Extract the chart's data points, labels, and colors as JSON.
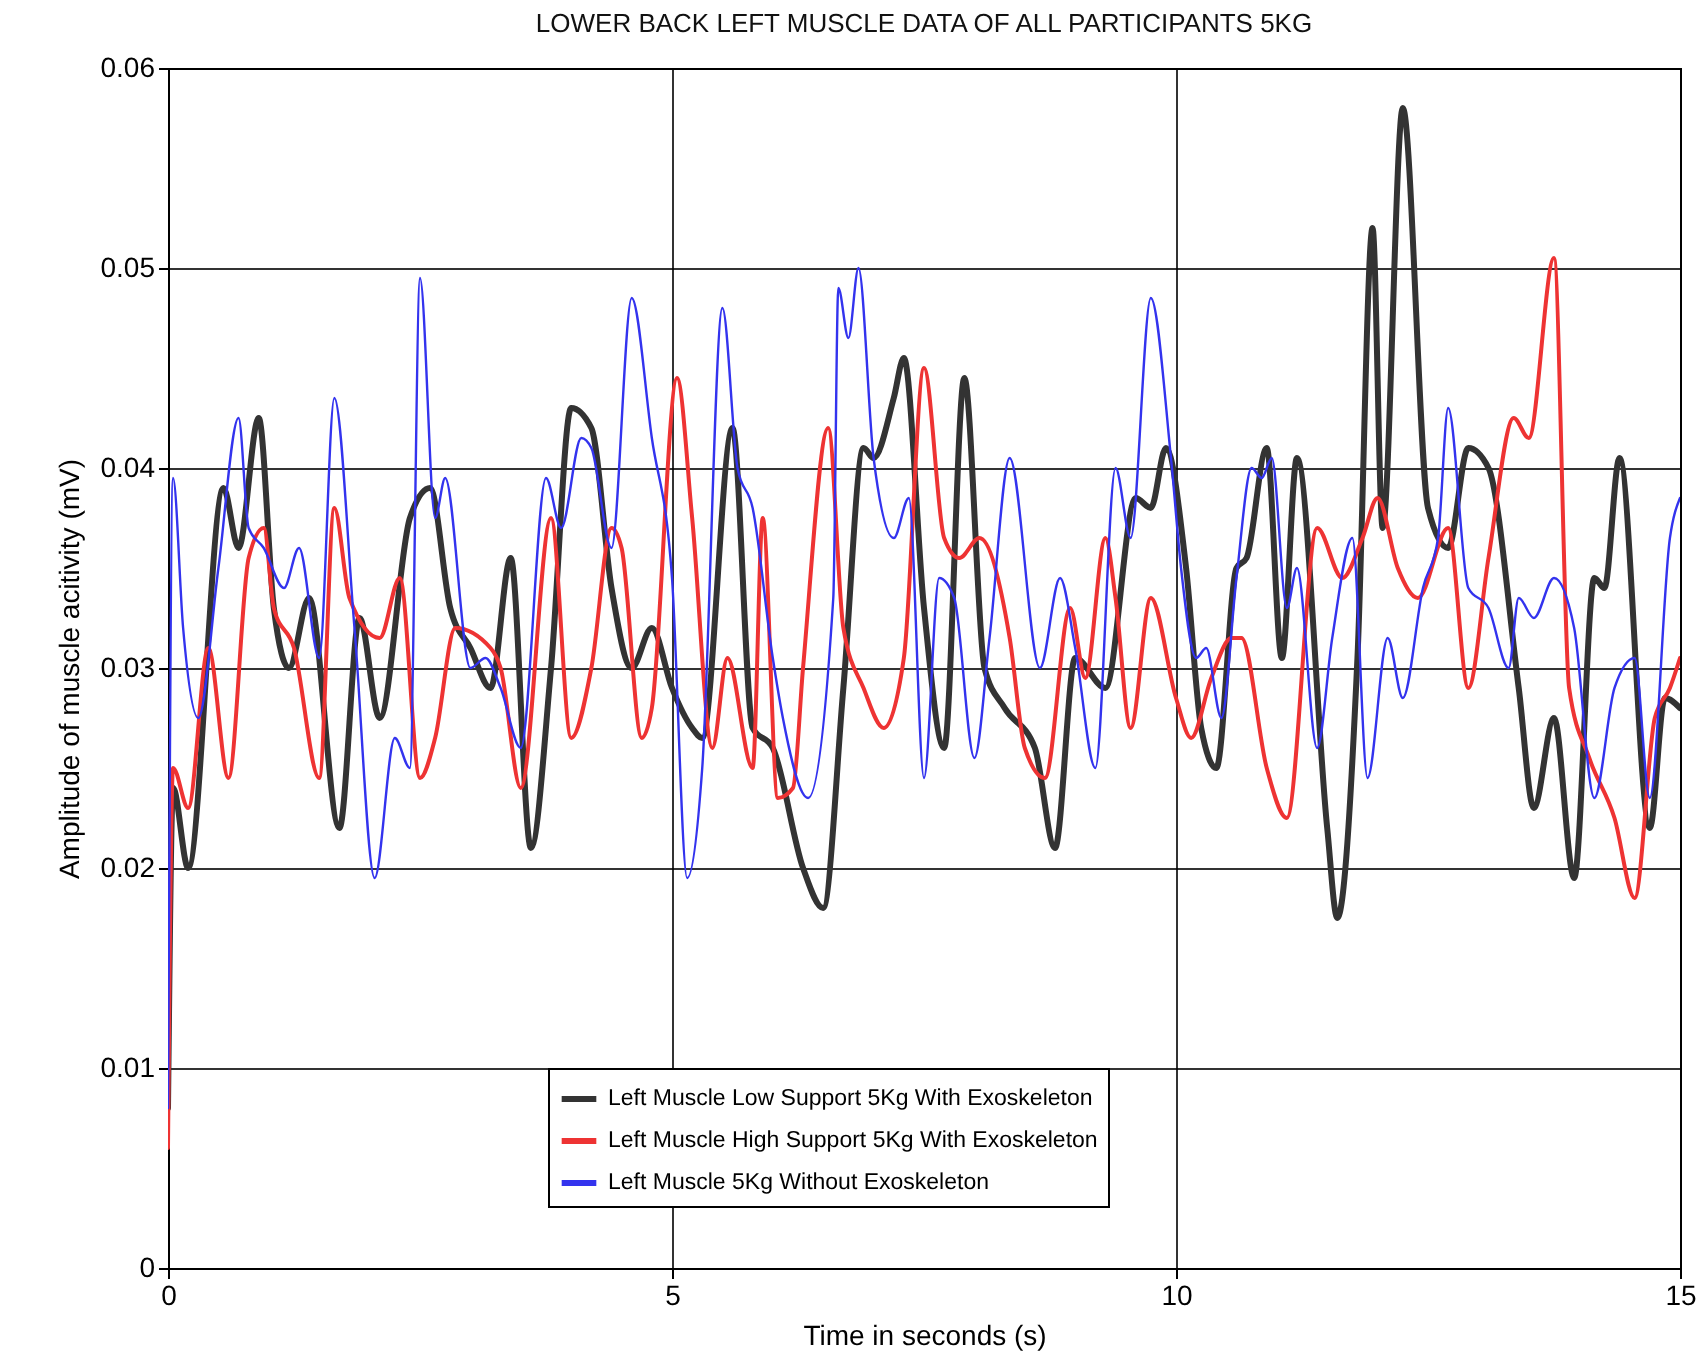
{
  "chart_data": {
    "type": "line",
    "title": "LOWER BACK LEFT MUSCLE DATA OF ALL PARTICIPANTS 5KG",
    "xlabel": "Time in seconds (s)",
    "ylabel": "Amplitude of muscle acitivity (mV)",
    "xlim": [
      0,
      15
    ],
    "xticks": [
      0,
      5,
      10,
      15
    ],
    "ylim": [
      0,
      0.06
    ],
    "yticks": [
      0,
      0.01,
      0.02,
      0.03,
      0.04,
      0.05,
      0.06
    ],
    "grid": true,
    "legend": "bottom",
    "line_style": "solid",
    "series": [
      {
        "name": "Left Muscle Low Support 5Kg With Exoskeleton",
        "color": "#333333",
        "x": [
          0,
          0.05,
          0.2,
          0.55,
          0.7,
          0.9,
          1.05,
          1.2,
          1.4,
          1.7,
          1.9,
          2.1,
          2.4,
          2.6,
          2.8,
          3.0,
          3.2,
          3.4,
          3.6,
          3.8,
          4.0,
          4.2,
          4.4,
          4.6,
          4.8,
          5.0,
          5.2,
          5.3,
          5.6,
          5.8,
          6.0,
          6.3,
          6.5,
          6.7,
          6.9,
          7.0,
          7.2,
          7.3,
          7.5,
          7.7,
          7.9,
          8.1,
          8.3,
          8.6,
          8.8,
          9.0,
          9.3,
          9.6,
          9.75,
          9.9,
          10.1,
          10.25,
          10.4,
          10.6,
          10.7,
          10.9,
          11.05,
          11.2,
          11.5,
          11.6,
          11.8,
          11.95,
          12.05,
          12.25,
          12.5,
          12.7,
          12.9,
          13.1,
          13.4,
          13.55,
          13.75,
          13.95,
          14.15,
          14.25,
          14.4,
          14.7,
          14.85,
          15
        ],
        "values": [
          0.008,
          0.024,
          0.02,
          0.039,
          0.036,
          0.0425,
          0.033,
          0.03,
          0.0335,
          0.022,
          0.0325,
          0.0275,
          0.0375,
          0.039,
          0.033,
          0.031,
          0.029,
          0.0355,
          0.021,
          0.03,
          0.043,
          0.042,
          0.034,
          0.03,
          0.032,
          0.029,
          0.027,
          0.0265,
          0.042,
          0.027,
          0.026,
          0.02,
          0.018,
          0.029,
          0.041,
          0.0405,
          0.0435,
          0.0455,
          0.033,
          0.026,
          0.0445,
          0.03,
          0.028,
          0.026,
          0.021,
          0.0305,
          0.029,
          0.0385,
          0.038,
          0.041,
          0.035,
          0.027,
          0.025,
          0.035,
          0.0355,
          0.041,
          0.0305,
          0.0405,
          0.022,
          0.0175,
          0.0305,
          0.052,
          0.037,
          0.058,
          0.038,
          0.036,
          0.041,
          0.04,
          0.029,
          0.023,
          0.0275,
          0.0195,
          0.0345,
          0.034,
          0.0405,
          0.022,
          0.0285,
          0.028
        ]
      },
      {
        "name": "Left Muscle High Support 5Kg With Exoskeleton",
        "color": "#ee3333",
        "x": [
          0,
          0.05,
          0.2,
          0.4,
          0.6,
          0.8,
          0.95,
          1.05,
          1.25,
          1.5,
          1.65,
          1.8,
          2.1,
          2.3,
          2.5,
          2.65,
          2.85,
          3.2,
          3.3,
          3.5,
          3.8,
          4.0,
          4.2,
          4.4,
          4.5,
          4.7,
          4.8,
          5.05,
          5.2,
          5.4,
          5.55,
          5.8,
          5.9,
          6.05,
          6.2,
          6.3,
          6.55,
          6.7,
          6.9,
          7.1,
          7.3,
          7.5,
          7.7,
          7.85,
          8.05,
          8.35,
          8.5,
          8.7,
          8.95,
          9.1,
          9.3,
          9.4,
          9.55,
          9.75,
          10.0,
          10.15,
          10.35,
          10.55,
          10.65,
          10.9,
          11.1,
          11.4,
          11.65,
          11.85,
          12.0,
          12.2,
          12.4,
          12.7,
          12.9,
          13.1,
          13.35,
          13.5,
          13.75,
          13.9,
          14.1,
          14.35,
          14.55,
          14.75,
          14.9,
          15
        ],
        "values": [
          0.006,
          0.025,
          0.023,
          0.031,
          0.0245,
          0.0355,
          0.037,
          0.033,
          0.031,
          0.0245,
          0.038,
          0.0335,
          0.0315,
          0.0345,
          0.0245,
          0.0265,
          0.032,
          0.031,
          0.03,
          0.024,
          0.0375,
          0.0265,
          0.03,
          0.037,
          0.036,
          0.0265,
          0.028,
          0.0445,
          0.0375,
          0.026,
          0.0305,
          0.025,
          0.0375,
          0.0235,
          0.024,
          0.03,
          0.042,
          0.032,
          0.029,
          0.027,
          0.0305,
          0.045,
          0.0365,
          0.0355,
          0.0365,
          0.0315,
          0.026,
          0.0245,
          0.033,
          0.0295,
          0.0365,
          0.0335,
          0.027,
          0.0335,
          0.0285,
          0.0265,
          0.0295,
          0.0315,
          0.0315,
          0.025,
          0.0225,
          0.037,
          0.0345,
          0.0365,
          0.0385,
          0.035,
          0.0335,
          0.037,
          0.029,
          0.0355,
          0.0425,
          0.0415,
          0.0505,
          0.029,
          0.0255,
          0.0225,
          0.0185,
          0.0275,
          0.029,
          0.0305
        ]
      },
      {
        "name": "Left Muscle 5Kg Without Exoskeleton",
        "color": "#3333ee",
        "x": [
          0,
          0.05,
          0.15,
          0.3,
          0.5,
          0.7,
          0.8,
          0.95,
          1.15,
          1.3,
          1.5,
          1.65,
          1.85,
          2.05,
          2.25,
          2.4,
          2.5,
          2.65,
          2.75,
          3.0,
          3.15,
          3.3,
          3.5,
          3.75,
          3.9,
          4.1,
          4.2,
          4.4,
          4.6,
          4.8,
          5.0,
          5.15,
          5.3,
          5.5,
          5.65,
          5.8,
          6.0,
          6.1,
          6.35,
          6.6,
          6.65,
          6.75,
          6.85,
          7.0,
          7.2,
          7.35,
          7.5,
          7.65,
          7.8,
          8.0,
          8.15,
          8.35,
          8.65,
          8.85,
          9.0,
          9.2,
          9.4,
          9.55,
          9.75,
          9.95,
          10.05,
          10.2,
          10.3,
          10.45,
          10.6,
          10.75,
          10.85,
          10.95,
          11.1,
          11.2,
          11.4,
          11.55,
          11.75,
          11.9,
          12.1,
          12.25,
          12.45,
          12.6,
          12.7,
          12.9,
          13.1,
          13.3,
          13.4,
          13.55,
          13.75,
          13.95,
          14.15,
          14.35,
          14.55,
          14.7,
          14.9,
          15
        ],
        "values": [
          0.008,
          0.0395,
          0.032,
          0.0275,
          0.035,
          0.0425,
          0.037,
          0.036,
          0.034,
          0.036,
          0.0305,
          0.0435,
          0.032,
          0.0195,
          0.0265,
          0.025,
          0.0495,
          0.0375,
          0.0395,
          0.03,
          0.0305,
          0.029,
          0.026,
          0.0395,
          0.037,
          0.0415,
          0.041,
          0.036,
          0.0485,
          0.0415,
          0.0345,
          0.0195,
          0.025,
          0.048,
          0.04,
          0.038,
          0.0305,
          0.0275,
          0.0235,
          0.0335,
          0.049,
          0.0465,
          0.05,
          0.0405,
          0.0365,
          0.0385,
          0.0245,
          0.0345,
          0.0335,
          0.0255,
          0.0315,
          0.0405,
          0.03,
          0.0345,
          0.031,
          0.025,
          0.04,
          0.0365,
          0.0485,
          0.0405,
          0.035,
          0.0305,
          0.031,
          0.0275,
          0.0345,
          0.04,
          0.0395,
          0.0405,
          0.033,
          0.035,
          0.026,
          0.0315,
          0.0365,
          0.0245,
          0.0315,
          0.0285,
          0.034,
          0.0365,
          0.043,
          0.034,
          0.033,
          0.03,
          0.0335,
          0.0325,
          0.0345,
          0.032,
          0.0235,
          0.029,
          0.0305,
          0.0235,
          0.0365,
          0.0385
        ]
      }
    ]
  }
}
